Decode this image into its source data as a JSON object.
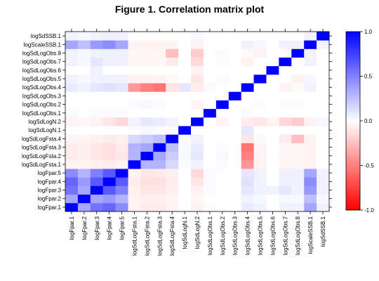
{
  "chart_data": {
    "type": "heatmap",
    "title": "Figure 1. Correlation matrix plot",
    "labels": [
      "logFpar.1",
      "logFpar.2",
      "logFpar.3",
      "logFpar.4",
      "logFpar.5",
      "logSdLogFsta.1",
      "logSdLogFsta.2",
      "logSdLogFsta.3",
      "logSdLogFsta.4",
      "logSdLogN.1",
      "logSdLogN.2",
      "logSdLogObs.1",
      "logSdLogObs.2",
      "logSdLogObs.3",
      "logSdLogObs.4",
      "logSdLogObs.5",
      "logSdLogObs.6",
      "logSdLogObs.7",
      "logSdLogObs.8",
      "logScaleSSB.1",
      "logSdSSB.1"
    ],
    "color_scale": {
      "min": -1.0,
      "max": 1.0,
      "low_color": "#ff0000",
      "mid_color": "#ffffff",
      "high_color": "#0000ff"
    },
    "colorbar_ticks": [
      "1.0",
      "0.5",
      "0.0",
      "-0.5",
      "-1.0"
    ],
    "colorbar_values": [
      1.0,
      0.5,
      0.0,
      -0.5,
      -1.0
    ],
    "matrix": [
      [
        1.0,
        0.35,
        0.55,
        0.6,
        0.45,
        -0.05,
        -0.08,
        -0.08,
        -0.05,
        0.0,
        -0.05,
        0.02,
        0.0,
        0.0,
        0.08,
        0.05,
        0.0,
        0.05,
        0.05,
        0.35,
        0.05
      ],
      [
        0.35,
        1.0,
        0.35,
        0.4,
        0.3,
        -0.05,
        -0.06,
        -0.06,
        -0.04,
        0.0,
        -0.03,
        0.0,
        0.0,
        0.0,
        0.05,
        0.03,
        0.0,
        0.03,
        0.03,
        0.25,
        0.03
      ],
      [
        0.55,
        0.35,
        1.0,
        0.65,
        0.5,
        -0.06,
        -0.1,
        -0.1,
        -0.06,
        0.0,
        -0.05,
        0.02,
        0.0,
        0.0,
        0.1,
        0.05,
        0.05,
        0.1,
        0.05,
        0.4,
        0.05
      ],
      [
        0.6,
        0.4,
        0.65,
        1.0,
        0.65,
        -0.08,
        -0.12,
        -0.12,
        -0.08,
        0.0,
        -0.1,
        0.02,
        0.0,
        0.0,
        0.12,
        0.05,
        0.0,
        0.06,
        0.06,
        0.45,
        0.06
      ],
      [
        0.45,
        0.3,
        0.5,
        0.65,
        1.0,
        -0.05,
        -0.1,
        -0.08,
        -0.06,
        0.0,
        -0.15,
        0.02,
        0.0,
        0.0,
        0.1,
        0.05,
        0.0,
        0.06,
        0.06,
        0.35,
        0.06
      ],
      [
        -0.05,
        -0.05,
        -0.06,
        -0.08,
        -0.05,
        1.0,
        0.3,
        0.3,
        0.15,
        0.02,
        0.05,
        0.0,
        0.02,
        0.0,
        -0.4,
        -0.05,
        0.0,
        -0.03,
        -0.03,
        -0.05,
        0.0
      ],
      [
        -0.08,
        -0.06,
        -0.1,
        -0.12,
        -0.1,
        0.3,
        1.0,
        0.35,
        0.2,
        0.03,
        0.1,
        0.0,
        0.03,
        0.0,
        -0.5,
        -0.05,
        0.0,
        -0.04,
        -0.04,
        -0.05,
        0.0
      ],
      [
        -0.08,
        -0.06,
        -0.1,
        -0.12,
        -0.08,
        0.3,
        0.35,
        1.0,
        0.25,
        0.02,
        0.08,
        0.0,
        0.02,
        0.0,
        -0.55,
        -0.05,
        0.0,
        -0.03,
        -0.03,
        -0.05,
        0.0
      ],
      [
        -0.05,
        -0.04,
        -0.06,
        -0.08,
        -0.06,
        0.15,
        0.2,
        0.25,
        1.0,
        0.02,
        0.05,
        0.0,
        0.0,
        0.0,
        -0.1,
        -0.02,
        0.0,
        -0.08,
        -0.25,
        -0.05,
        0.0
      ],
      [
        0.0,
        0.0,
        0.0,
        0.0,
        0.0,
        0.02,
        0.03,
        0.02,
        0.02,
        1.0,
        0.0,
        0.0,
        0.0,
        0.0,
        0.1,
        0.0,
        0.0,
        0.0,
        0.0,
        0.0,
        0.0
      ],
      [
        -0.05,
        -0.03,
        -0.05,
        -0.1,
        -0.15,
        0.05,
        0.1,
        0.08,
        0.05,
        0.0,
        1.0,
        0.0,
        -0.05,
        0.0,
        -0.08,
        -0.1,
        -0.05,
        -0.15,
        -0.2,
        -0.05,
        0.03
      ],
      [
        0.02,
        0.0,
        0.02,
        0.02,
        0.02,
        0.0,
        0.0,
        0.0,
        0.0,
        0.0,
        0.0,
        1.0,
        0.0,
        0.0,
        0.02,
        0.0,
        0.0,
        0.0,
        0.0,
        0.0,
        0.0
      ],
      [
        0.0,
        0.0,
        0.0,
        0.0,
        0.0,
        0.02,
        0.03,
        0.02,
        0.0,
        0.0,
        -0.05,
        0.0,
        1.0,
        0.0,
        0.0,
        0.02,
        0.0,
        0.02,
        0.02,
        0.0,
        0.0
      ],
      [
        0.0,
        0.0,
        0.0,
        0.0,
        0.0,
        0.0,
        0.0,
        0.0,
        0.0,
        0.0,
        0.0,
        0.0,
        0.0,
        1.0,
        0.0,
        0.0,
        0.0,
        0.0,
        0.0,
        0.0,
        0.0
      ],
      [
        0.08,
        0.05,
        0.1,
        0.12,
        0.1,
        -0.4,
        -0.5,
        -0.55,
        -0.1,
        0.1,
        -0.08,
        0.02,
        0.0,
        0.0,
        1.0,
        0.0,
        0.0,
        -0.05,
        -0.02,
        0.05,
        0.0
      ],
      [
        0.05,
        0.03,
        0.05,
        0.05,
        0.05,
        -0.05,
        -0.05,
        -0.05,
        -0.02,
        0.0,
        -0.1,
        0.0,
        0.02,
        0.0,
        0.0,
        1.0,
        0.0,
        0.0,
        -0.05,
        0.03,
        0.0
      ],
      [
        0.0,
        0.0,
        0.05,
        0.0,
        0.0,
        0.0,
        0.0,
        0.0,
        0.0,
        0.0,
        -0.05,
        0.0,
        0.0,
        0.0,
        0.0,
        0.0,
        1.0,
        0.0,
        0.0,
        0.0,
        0.0
      ],
      [
        0.05,
        0.03,
        0.1,
        0.06,
        0.06,
        -0.03,
        -0.04,
        -0.03,
        -0.08,
        0.0,
        -0.15,
        0.0,
        0.02,
        0.0,
        -0.05,
        0.0,
        0.0,
        1.0,
        0.0,
        0.05,
        0.0
      ],
      [
        0.05,
        0.03,
        0.05,
        0.06,
        0.06,
        -0.03,
        -0.04,
        -0.03,
        -0.25,
        0.0,
        -0.2,
        0.0,
        0.02,
        0.0,
        -0.02,
        -0.05,
        0.0,
        0.0,
        1.0,
        0.05,
        0.0
      ],
      [
        0.35,
        0.25,
        0.4,
        0.45,
        0.35,
        -0.05,
        -0.05,
        -0.05,
        -0.05,
        0.0,
        -0.05,
        0.0,
        0.0,
        0.0,
        0.05,
        0.03,
        0.0,
        0.05,
        0.05,
        1.0,
        0.05
      ],
      [
        0.05,
        0.03,
        0.05,
        0.06,
        0.06,
        0.0,
        0.0,
        0.0,
        0.0,
        0.0,
        0.03,
        0.0,
        0.0,
        0.0,
        0.0,
        0.0,
        0.0,
        0.0,
        0.0,
        0.05,
        1.0
      ]
    ]
  }
}
